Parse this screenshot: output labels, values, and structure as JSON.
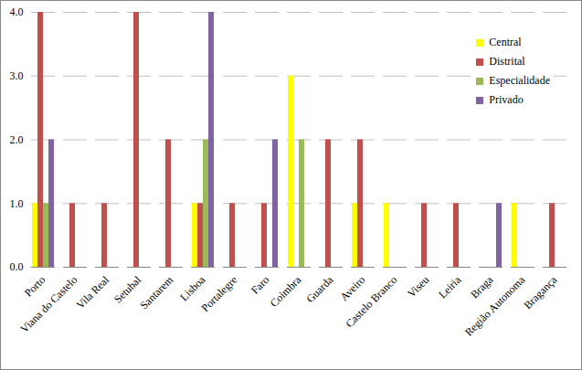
{
  "chart_data": {
    "type": "bar",
    "categories": [
      "Porto",
      "Viana do Castelo",
      "Vila Real",
      "Setubal",
      "Santarem",
      "Lisboa",
      "Portalegre",
      "Faro",
      "Coimbra",
      "Guarda",
      "Aveiro",
      "Castelo Branco",
      "Viseu",
      "Leiria",
      "Braga",
      "Região Autonoma",
      "Bragança"
    ],
    "series": [
      {
        "name": "Central",
        "color": "#ffff00",
        "values": [
          1,
          0,
          0,
          0,
          0,
          1,
          0,
          0,
          3,
          0,
          1,
          1,
          0,
          0,
          0,
          1,
          0
        ]
      },
      {
        "name": "Distrital",
        "color": "#c0504d",
        "values": [
          4,
          1,
          1,
          4,
          2,
          1,
          1,
          1,
          0,
          2,
          2,
          0,
          1,
          1,
          0,
          0,
          1
        ]
      },
      {
        "name": "Especialidade",
        "color": "#9bbb59",
        "values": [
          1,
          0,
          0,
          0,
          0,
          2,
          0,
          0,
          2,
          0,
          0,
          0,
          0,
          0,
          0,
          0,
          0
        ]
      },
      {
        "name": "Privado",
        "color": "#8064a2",
        "values": [
          2,
          0,
          0,
          0,
          0,
          4,
          0,
          2,
          0,
          0,
          0,
          0,
          0,
          0,
          1,
          0,
          0
        ]
      }
    ],
    "ylim": [
      0,
      4
    ],
    "yticks": [
      0,
      1,
      2,
      3,
      4
    ],
    "grid": true,
    "legend": "top-right"
  }
}
